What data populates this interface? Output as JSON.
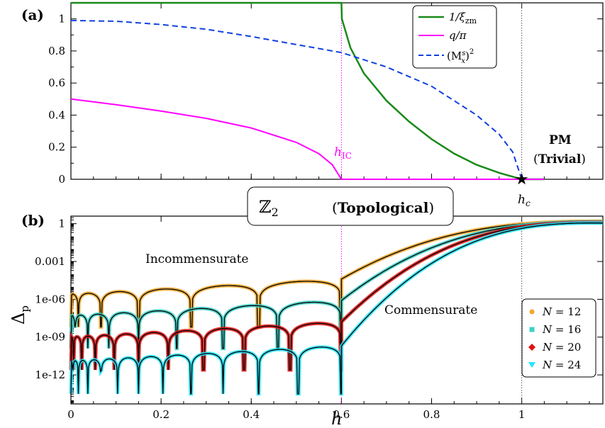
{
  "colors": {
    "xi": "#1a8a1a",
    "q": "#ff00ff",
    "m": "#1040e0",
    "n12": "#f2a72a",
    "n16": "#40d0c8",
    "n20": "#e01010",
    "n24": "#22e6ff",
    "marker_line": "#ff00ff"
  },
  "chart_data": [
    {
      "panel": "(a)",
      "type": "line",
      "xlim": [
        0,
        1.18
      ],
      "ylim": [
        0,
        1.1
      ],
      "yticks": [
        "0",
        "0.2",
        "0.4",
        "0.6",
        "0.8",
        "1"
      ],
      "ytick_values": [
        0,
        0.2,
        0.4,
        0.6,
        0.8,
        1
      ],
      "series": [
        {
          "name": "1/ξzm",
          "style": "solid",
          "x": [
            0,
            0.6,
            0.601,
            0.62,
            0.65,
            0.7,
            0.75,
            0.8,
            0.85,
            0.9,
            0.95,
            1.0,
            1.05
          ],
          "y": [
            1.1,
            1.1,
            1.0,
            0.82,
            0.66,
            0.49,
            0.36,
            0.25,
            0.16,
            0.09,
            0.04,
            0.0,
            0.0
          ]
        },
        {
          "name": "q/π",
          "style": "solid",
          "x": [
            0,
            0.1,
            0.2,
            0.3,
            0.4,
            0.5,
            0.55,
            0.58,
            0.6,
            0.61,
            1.05
          ],
          "y": [
            0.5,
            0.465,
            0.425,
            0.38,
            0.32,
            0.23,
            0.16,
            0.09,
            0.0,
            0.0,
            0.0
          ]
        },
        {
          "name": "(Mxs)2",
          "style": "dashed",
          "x": [
            0,
            0.1,
            0.2,
            0.3,
            0.4,
            0.5,
            0.6,
            0.7,
            0.8,
            0.9,
            0.95,
            0.98,
            1.0
          ],
          "y": [
            0.99,
            0.985,
            0.965,
            0.935,
            0.89,
            0.84,
            0.79,
            0.7,
            0.58,
            0.4,
            0.28,
            0.17,
            0.0
          ]
        }
      ],
      "annotations": {
        "panel_label": "(a)",
        "h_ic": "h",
        "h_ic_sub": "IC",
        "h_c": "h",
        "h_c_sub": "c",
        "pm_line1": "PM",
        "pm_line2_open": "(",
        "pm_line2_bold": "Trivial",
        "pm_line2_close": ")"
      },
      "legend": {
        "placement": "top-right",
        "entries": [
          {
            "label_main": "1/ξ",
            "label_sub": "zm"
          },
          {
            "label_main": "q/π",
            "label_sub": ""
          },
          {
            "label_main": "(M",
            "label_sub": "x",
            "label_sup": "s",
            "label_tail": ")",
            "label_tail_sup": "2"
          }
        ]
      }
    },
    {
      "panel": "(b)",
      "type": "line",
      "xlim": [
        0,
        1.18
      ],
      "ylabel": "Δ",
      "ylabel_sub": "p",
      "xlabel": "h",
      "yscale": "log",
      "xticks": [
        "0",
        "0.2",
        "0.4",
        "0.6",
        "0.8",
        "1"
      ],
      "xtick_values": [
        0,
        0.2,
        0.4,
        0.6,
        0.8,
        1
      ],
      "yticks": [
        "1",
        "0.001",
        "1e-06",
        "1e-09",
        "1e-12"
      ],
      "ytick_values": [
        0,
        -3,
        -6,
        -9,
        -12
      ],
      "series": [
        {
          "name": "N = 12",
          "n": 12,
          "osc_level": -5.6,
          "oscillations": 6
        },
        {
          "name": "N = 16",
          "n": 16,
          "osc_level": -7.3,
          "oscillations": 8
        },
        {
          "name": "N = 20",
          "n": 20,
          "osc_level": -9.0,
          "oscillations": 10
        },
        {
          "name": "N = 24",
          "n": 24,
          "osc_level": -10.9,
          "oscillations": 12
        }
      ],
      "annotations": {
        "panel_label": "(b)",
        "incommensurate": "Incommensurate",
        "commensurate": "Commensurate",
        "z2_symbol": "ℤ",
        "z2_sub": "2",
        "topological_open": "(",
        "topological_bold": "Topological",
        "topological_close": ")"
      },
      "legend": {
        "placement": "bottom-right",
        "entries": [
          {
            "label": "N",
            "eq": " = 12"
          },
          {
            "label": "N",
            "eq": " = 16"
          },
          {
            "label": "N",
            "eq": " = 20"
          },
          {
            "label": "N",
            "eq": " = 24"
          }
        ]
      }
    }
  ]
}
